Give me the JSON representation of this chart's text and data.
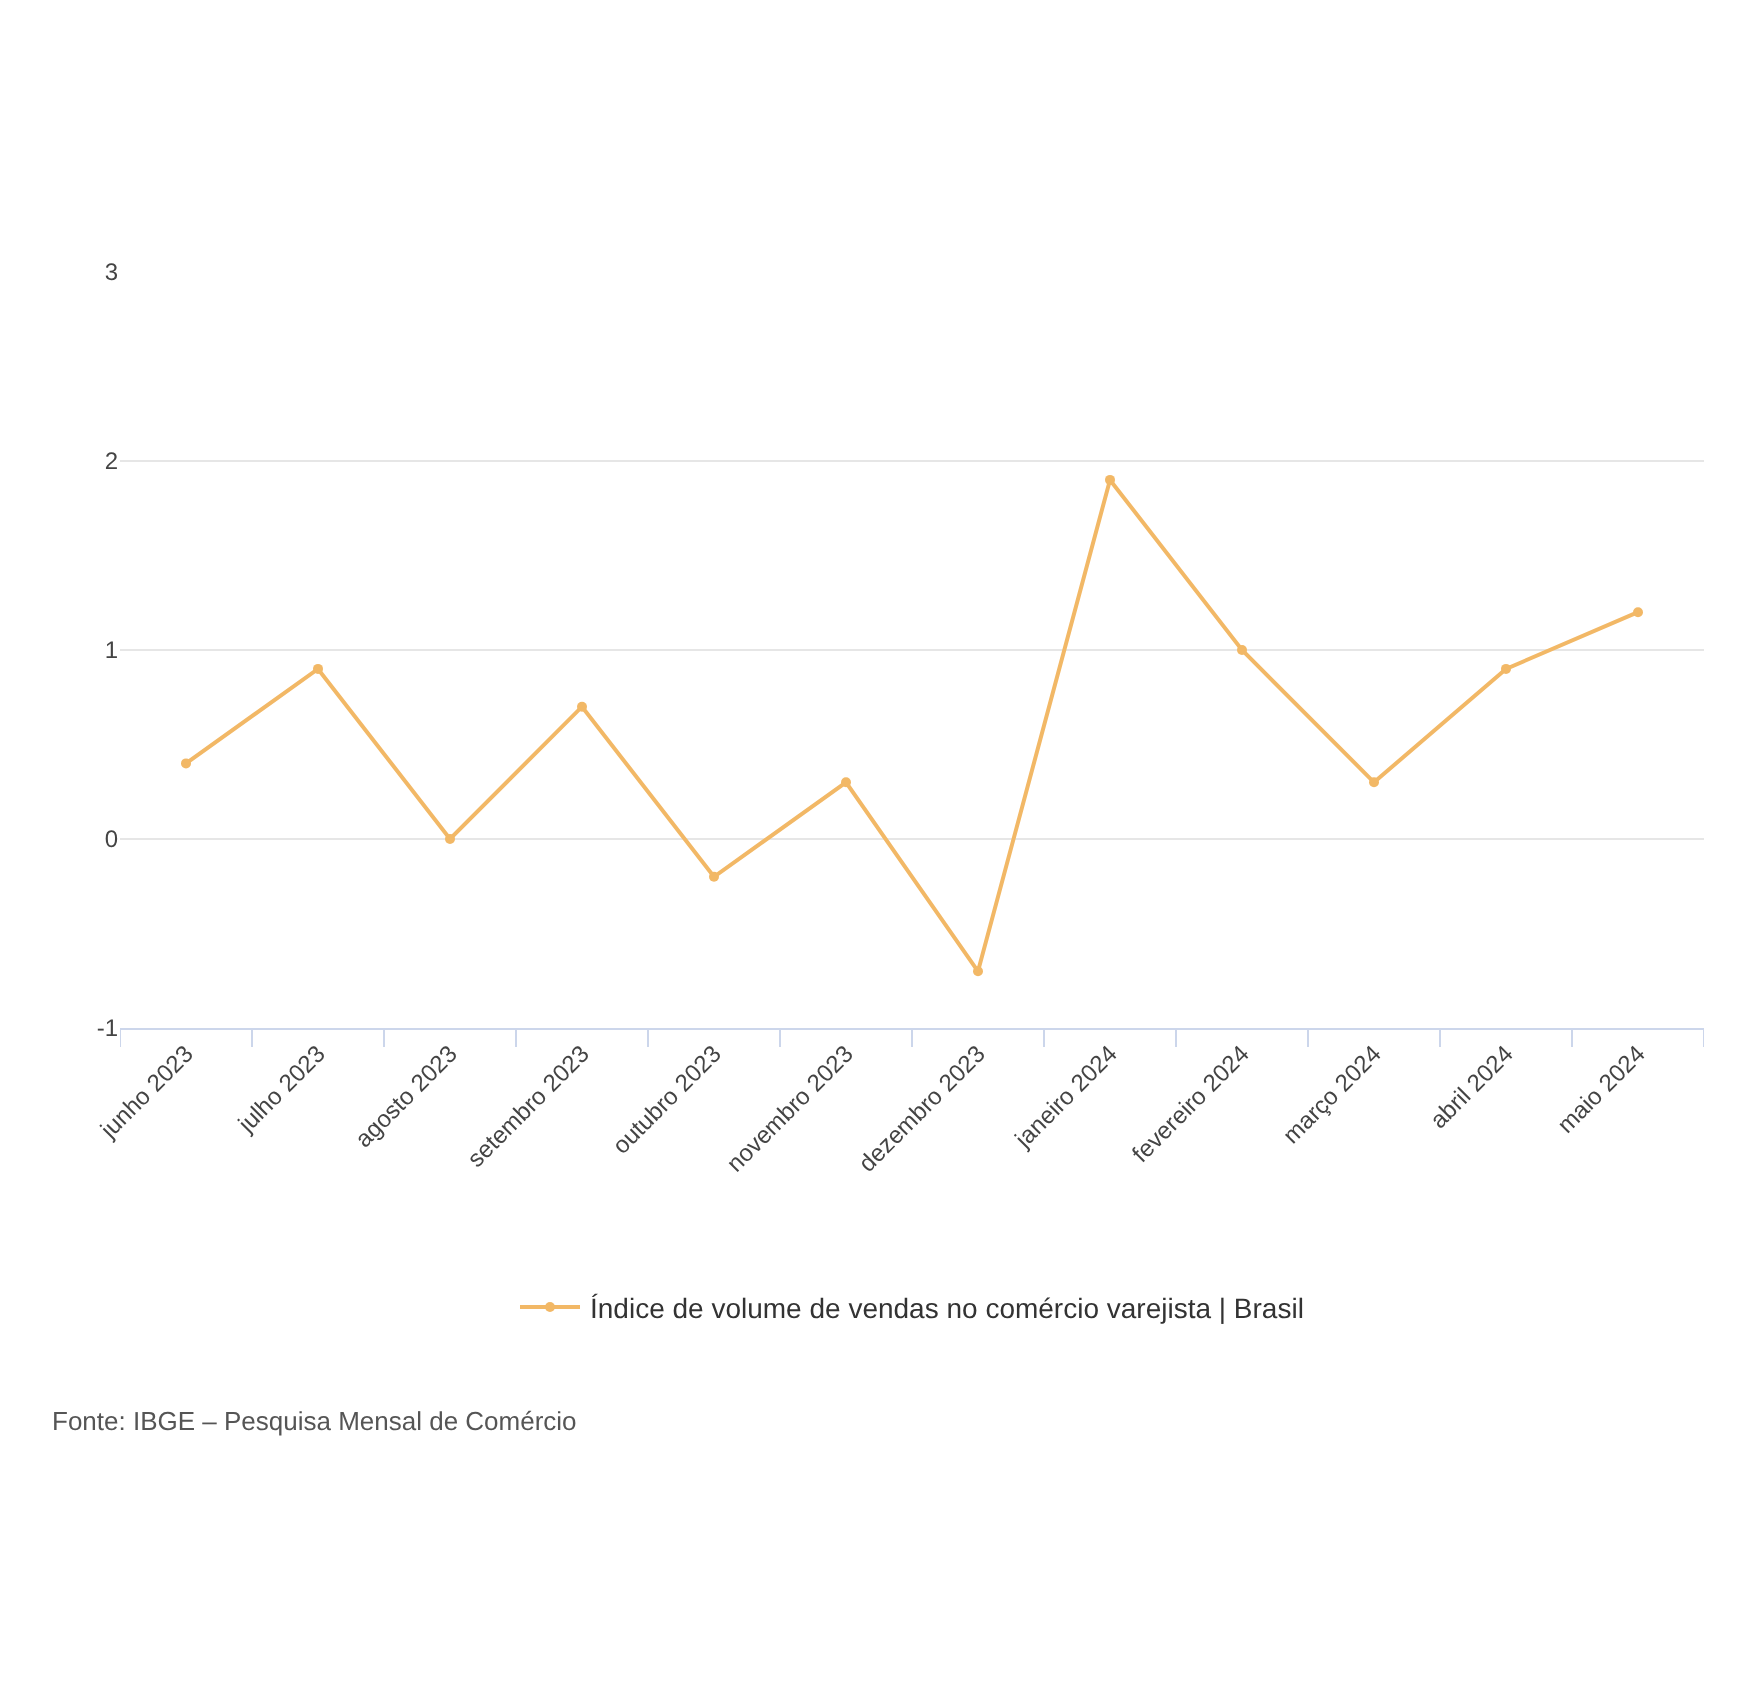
{
  "chart_data": {
    "type": "line",
    "categories": [
      "junho 2023",
      "julho 2023",
      "agosto 2023",
      "setembro 2023",
      "outubro 2023",
      "novembro 2023",
      "dezembro 2023",
      "janeiro 2024",
      "fevereiro 2024",
      "março 2024",
      "abril 2024",
      "maio 2024"
    ],
    "series": [
      {
        "name": "Índice de volume de vendas no comércio varejista | Brasil",
        "color": "#f2b866",
        "values": [
          0.4,
          0.9,
          0.0,
          0.7,
          -0.2,
          0.3,
          -0.7,
          1.9,
          1.0,
          0.3,
          0.9,
          1.2
        ]
      }
    ],
    "ylim": [
      -1,
      3
    ],
    "yticks": [
      -1,
      0,
      1,
      2,
      3
    ],
    "grid": "y",
    "legend": "bottom",
    "marker": "circle",
    "line_style": "solid",
    "annotations": [
      "Fonte: IBGE – Pesquisa Mensal de Comércio"
    ]
  }
}
